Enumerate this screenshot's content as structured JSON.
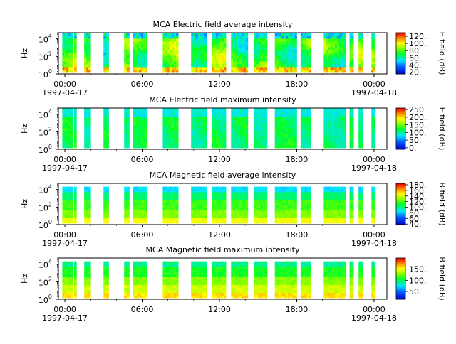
{
  "chart_data": [
    {
      "type": "heatmap",
      "title": "MCA  Electric field average intensity",
      "ylabel": "Hz",
      "y_scale": "log",
      "y_ticks": [
        {
          "base": "10",
          "exp": "0"
        },
        {
          "base": "10",
          "exp": "2"
        },
        {
          "base": "10",
          "exp": "4"
        }
      ],
      "x_ticks": [
        {
          "label": "00:00",
          "sublabel": "1997-04-17",
          "hour": 0
        },
        {
          "label": "06:00",
          "sublabel": "",
          "hour": 6
        },
        {
          "label": "12:00",
          "sublabel": "",
          "hour": 12
        },
        {
          "label": "18:00",
          "sublabel": "",
          "hour": 18
        },
        {
          "label": "00:00",
          "sublabel": "1997-04-18",
          "hour": 24
        }
      ],
      "x_range_hours": [
        -0.5,
        25.0
      ],
      "colorbar": {
        "label": "E field (dB)",
        "range": [
          15,
          130
        ],
        "ticks": [
          "20.",
          "40.",
          "60.",
          "80.",
          "100.",
          "120."
        ],
        "tick_values": [
          20,
          40,
          60,
          80,
          100,
          120
        ]
      },
      "style": "e_avg"
    },
    {
      "type": "heatmap",
      "title": "MCA  Electric field maximum intensity",
      "ylabel": "Hz",
      "y_scale": "log",
      "y_ticks": [
        {
          "base": "10",
          "exp": "0"
        },
        {
          "base": "10",
          "exp": "2"
        },
        {
          "base": "10",
          "exp": "4"
        }
      ],
      "x_ticks": [
        {
          "label": "00:00",
          "sublabel": "1997-04-17",
          "hour": 0
        },
        {
          "label": "06:00",
          "sublabel": "",
          "hour": 6
        },
        {
          "label": "12:00",
          "sublabel": "",
          "hour": 12
        },
        {
          "label": "18:00",
          "sublabel": "",
          "hour": 18
        },
        {
          "label": "00:00",
          "sublabel": "1997-04-18",
          "hour": 24
        }
      ],
      "x_range_hours": [
        -0.5,
        25.0
      ],
      "colorbar": {
        "label": "E field (dB)",
        "range": [
          -10,
          260
        ],
        "ticks": [
          "0.",
          "50.",
          "100.",
          "150.",
          "200.",
          "250."
        ],
        "tick_values": [
          0,
          50,
          100,
          150,
          200,
          250
        ]
      },
      "style": "e_max"
    },
    {
      "type": "heatmap",
      "title": "MCA  Magnetic field average intensity",
      "ylabel": "Hz",
      "y_scale": "log",
      "y_ticks": [
        {
          "base": "10",
          "exp": "0"
        },
        {
          "base": "10",
          "exp": "2"
        },
        {
          "base": "10",
          "exp": "4"
        }
      ],
      "x_ticks": [
        {
          "label": "00:00",
          "sublabel": "1997-04-17",
          "hour": 0
        },
        {
          "label": "06:00",
          "sublabel": "",
          "hour": 6
        },
        {
          "label": "12:00",
          "sublabel": "",
          "hour": 12
        },
        {
          "label": "18:00",
          "sublabel": "",
          "hour": 18
        },
        {
          "label": "00:00",
          "sublabel": "1997-04-18",
          "hour": 24
        }
      ],
      "x_range_hours": [
        -0.5,
        25.0
      ],
      "colorbar": {
        "label": "B field (dB)",
        "range": [
          38,
          185
        ],
        "ticks": [
          "40.",
          "60.",
          "80.",
          "100.",
          "120.",
          "140.",
          "160.",
          "180."
        ],
        "tick_values": [
          40,
          60,
          80,
          100,
          120,
          140,
          160,
          180
        ]
      },
      "style": "b_avg"
    },
    {
      "type": "heatmap",
      "title": "MCA  Magnetic field maximum intensity",
      "ylabel": "Hz",
      "y_scale": "log",
      "y_ticks": [
        {
          "base": "10",
          "exp": "0"
        },
        {
          "base": "10",
          "exp": "2"
        },
        {
          "base": "10",
          "exp": "4"
        }
      ],
      "x_ticks": [
        {
          "label": "00:00",
          "sublabel": "1997-04-17",
          "hour": 0
        },
        {
          "label": "06:00",
          "sublabel": "",
          "hour": 6
        },
        {
          "label": "12:00",
          "sublabel": "",
          "hour": 12
        },
        {
          "label": "18:00",
          "sublabel": "",
          "hour": 18
        },
        {
          "label": "00:00",
          "sublabel": "1997-04-18",
          "hour": 24
        }
      ],
      "x_range_hours": [
        -0.5,
        25.0
      ],
      "colorbar": {
        "label": "B field (dB)",
        "range": [
          15,
          200
        ],
        "ticks": [
          "50.",
          "100.",
          "150."
        ],
        "tick_values": [
          50,
          100,
          150
        ]
      },
      "style": "b_max"
    }
  ],
  "data_intervals_hours": [
    [
      -0.2,
      0.6
    ],
    [
      0.7,
      0.9
    ],
    [
      1.5,
      2.0
    ],
    [
      3.0,
      3.4
    ],
    [
      4.6,
      5.0
    ],
    [
      5.3,
      6.4
    ],
    [
      7.6,
      8.8
    ],
    [
      9.8,
      11.0
    ],
    [
      11.4,
      12.5
    ],
    [
      12.9,
      14.2
    ],
    [
      14.7,
      15.7
    ],
    [
      16.3,
      18.0
    ],
    [
      18.3,
      19.1
    ],
    [
      20.1,
      21.8
    ],
    [
      22.1,
      22.4
    ],
    [
      22.8,
      23.1
    ],
    [
      23.8,
      24.1
    ]
  ]
}
